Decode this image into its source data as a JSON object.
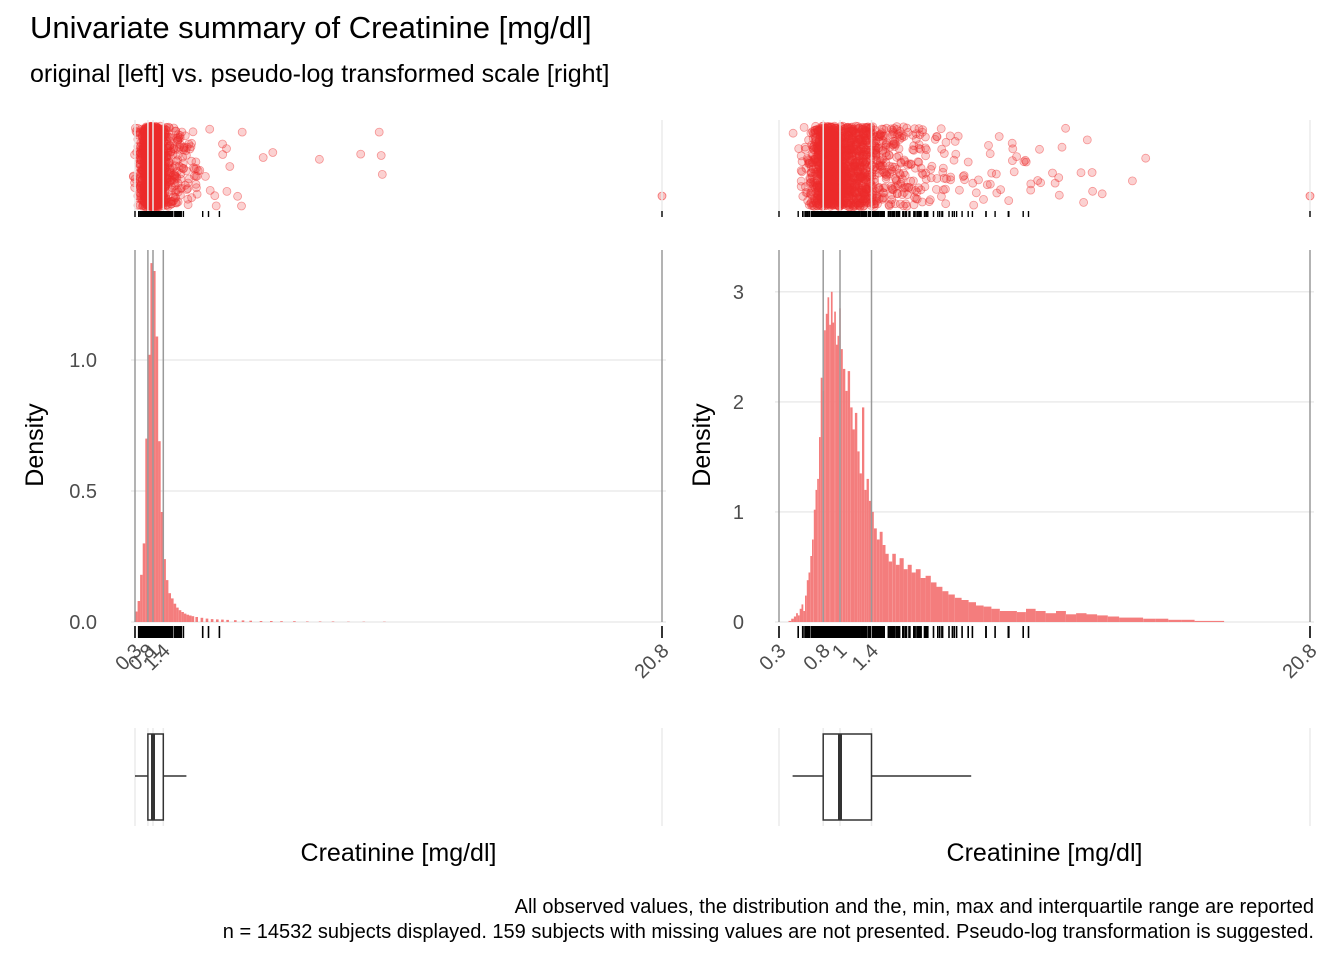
{
  "title": "Univariate summary of Creatinine [mg/dl]",
  "subtitle": "original [left] vs. pseudo-log transformed scale [right]",
  "caption": [
    "All observed values, the distribution and the, min, max and interquartile range are reported",
    "n = 14532 subjects displayed. 159 subjects with missing values are not presented. Pseudo-log transformation is suggested."
  ],
  "colors": {
    "points": "#EE2C2C",
    "bars": "#F47D7D",
    "grid": "#EBEBEB",
    "refline": "#9A9A9A",
    "text": "#4D4D4D"
  },
  "chart_data": [
    {
      "type": "bar",
      "panel": "original",
      "ylabel": "Density",
      "xlabel": "Creatinine [mg/dl]",
      "x_breaks": [
        0.3,
        0.8,
        1.0,
        1.4,
        20.8
      ],
      "x_tick_labels": [
        "0.3",
        "0.8",
        "1",
        "1.4",
        "20.8"
      ],
      "y_ticks": [
        0.0,
        0.5,
        1.0
      ],
      "y_tick_labels": [
        "0.0",
        "0.5",
        "1.0"
      ],
      "xlim": [
        0.3,
        20.8
      ],
      "ylim": [
        0,
        1.42
      ],
      "bin_width": 0.1,
      "bins": [
        {
          "x": 0.35,
          "y": 0.04
        },
        {
          "x": 0.45,
          "y": 0.08
        },
        {
          "x": 0.55,
          "y": 0.18
        },
        {
          "x": 0.65,
          "y": 0.3
        },
        {
          "x": 0.75,
          "y": 0.7
        },
        {
          "x": 0.85,
          "y": 1.02
        },
        {
          "x": 0.95,
          "y": 1.37
        },
        {
          "x": 1.05,
          "y": 1.34
        },
        {
          "x": 1.15,
          "y": 1.09
        },
        {
          "x": 1.25,
          "y": 0.69
        },
        {
          "x": 1.35,
          "y": 0.42
        },
        {
          "x": 1.45,
          "y": 0.24
        },
        {
          "x": 1.55,
          "y": 0.16
        },
        {
          "x": 1.65,
          "y": 0.11
        },
        {
          "x": 1.75,
          "y": 0.09
        },
        {
          "x": 1.85,
          "y": 0.07
        },
        {
          "x": 1.95,
          "y": 0.055
        },
        {
          "x": 2.05,
          "y": 0.045
        },
        {
          "x": 2.15,
          "y": 0.038
        },
        {
          "x": 2.25,
          "y": 0.032
        },
        {
          "x": 2.35,
          "y": 0.028
        },
        {
          "x": 2.45,
          "y": 0.025
        },
        {
          "x": 2.55,
          "y": 0.022
        },
        {
          "x": 2.7,
          "y": 0.019
        },
        {
          "x": 2.9,
          "y": 0.016
        },
        {
          "x": 3.1,
          "y": 0.013
        },
        {
          "x": 3.3,
          "y": 0.011
        },
        {
          "x": 3.5,
          "y": 0.01
        },
        {
          "x": 3.7,
          "y": 0.009
        },
        {
          "x": 3.9,
          "y": 0.008
        },
        {
          "x": 4.2,
          "y": 0.007
        },
        {
          "x": 4.5,
          "y": 0.006
        },
        {
          "x": 4.8,
          "y": 0.005
        },
        {
          "x": 5.2,
          "y": 0.004
        },
        {
          "x": 5.6,
          "y": 0.004
        },
        {
          "x": 6.0,
          "y": 0.003
        },
        {
          "x": 6.5,
          "y": 0.003
        },
        {
          "x": 7.0,
          "y": 0.002
        },
        {
          "x": 7.5,
          "y": 0.002
        },
        {
          "x": 8.0,
          "y": 0.002
        },
        {
          "x": 8.6,
          "y": 0.001
        },
        {
          "x": 9.2,
          "y": 0.001
        },
        {
          "x": 10.0,
          "y": 0.001
        }
      ],
      "boxplot": {
        "min": 0.3,
        "q1": 0.8,
        "median": 1.0,
        "q3": 1.4,
        "whisker_high": 2.3,
        "max": 20.8
      }
    },
    {
      "type": "bar",
      "panel": "pseudo-log",
      "ylabel": "Density",
      "xlabel": "Creatinine [mg/dl]",
      "x_breaks": [
        0.3,
        0.8,
        1.0,
        1.4,
        20.8
      ],
      "x_tick_labels": [
        "0.3",
        "0.8",
        "1",
        "1.4",
        "20.8"
      ],
      "y_ticks": [
        0,
        1,
        2,
        3
      ],
      "y_tick_labels": [
        "0",
        "1",
        "2",
        "3"
      ],
      "xlim": [
        0.3,
        20.8
      ],
      "ylim": [
        0,
        3.38
      ],
      "scale": "pseudo-log",
      "bins": [
        {
          "x": 0.42,
          "y": 0.01
        },
        {
          "x": 0.45,
          "y": 0.03
        },
        {
          "x": 0.48,
          "y": 0.05
        },
        {
          "x": 0.5,
          "y": 0.08
        },
        {
          "x": 0.52,
          "y": 0.06
        },
        {
          "x": 0.54,
          "y": 0.12
        },
        {
          "x": 0.56,
          "y": 0.16
        },
        {
          "x": 0.58,
          "y": 0.1
        },
        {
          "x": 0.6,
          "y": 0.24
        },
        {
          "x": 0.62,
          "y": 0.38
        },
        {
          "x": 0.64,
          "y": 0.45
        },
        {
          "x": 0.66,
          "y": 0.6
        },
        {
          "x": 0.68,
          "y": 0.75
        },
        {
          "x": 0.7,
          "y": 1.02
        },
        {
          "x": 0.72,
          "y": 1.2
        },
        {
          "x": 0.74,
          "y": 1.3
        },
        {
          "x": 0.76,
          "y": 1.68
        },
        {
          "x": 0.78,
          "y": 2.22
        },
        {
          "x": 0.8,
          "y": 2.1
        },
        {
          "x": 0.82,
          "y": 2.65
        },
        {
          "x": 0.84,
          "y": 2.8
        },
        {
          "x": 0.86,
          "y": 2.95
        },
        {
          "x": 0.88,
          "y": 2.7
        },
        {
          "x": 0.9,
          "y": 3.0
        },
        {
          "x": 0.92,
          "y": 2.72
        },
        {
          "x": 0.94,
          "y": 2.82
        },
        {
          "x": 0.96,
          "y": 2.52
        },
        {
          "x": 0.98,
          "y": 2.6
        },
        {
          "x": 1.0,
          "y": 2.85
        },
        {
          "x": 1.02,
          "y": 2.48
        },
        {
          "x": 1.05,
          "y": 2.3
        },
        {
          "x": 1.08,
          "y": 2.1
        },
        {
          "x": 1.11,
          "y": 2.28
        },
        {
          "x": 1.14,
          "y": 1.95
        },
        {
          "x": 1.17,
          "y": 1.75
        },
        {
          "x": 1.2,
          "y": 1.9
        },
        {
          "x": 1.23,
          "y": 1.55
        },
        {
          "x": 1.26,
          "y": 1.35
        },
        {
          "x": 1.29,
          "y": 1.95
        },
        {
          "x": 1.32,
          "y": 1.2
        },
        {
          "x": 1.35,
          "y": 1.3
        },
        {
          "x": 1.38,
          "y": 1.1
        },
        {
          "x": 1.41,
          "y": 1.0
        },
        {
          "x": 1.45,
          "y": 0.85
        },
        {
          "x": 1.49,
          "y": 0.75
        },
        {
          "x": 1.53,
          "y": 0.82
        },
        {
          "x": 1.57,
          "y": 0.7
        },
        {
          "x": 1.61,
          "y": 0.62
        },
        {
          "x": 1.66,
          "y": 0.55
        },
        {
          "x": 1.71,
          "y": 0.62
        },
        {
          "x": 1.76,
          "y": 0.52
        },
        {
          "x": 1.82,
          "y": 0.58
        },
        {
          "x": 1.88,
          "y": 0.48
        },
        {
          "x": 1.94,
          "y": 0.52
        },
        {
          "x": 2.0,
          "y": 0.45
        },
        {
          "x": 2.07,
          "y": 0.48
        },
        {
          "x": 2.15,
          "y": 0.4
        },
        {
          "x": 2.23,
          "y": 0.42
        },
        {
          "x": 2.32,
          "y": 0.36
        },
        {
          "x": 2.42,
          "y": 0.32
        },
        {
          "x": 2.52,
          "y": 0.28
        },
        {
          "x": 2.63,
          "y": 0.25
        },
        {
          "x": 2.75,
          "y": 0.22
        },
        {
          "x": 2.88,
          "y": 0.2
        },
        {
          "x": 3.02,
          "y": 0.18
        },
        {
          "x": 3.17,
          "y": 0.15
        },
        {
          "x": 3.33,
          "y": 0.14
        },
        {
          "x": 3.5,
          "y": 0.12
        },
        {
          "x": 3.7,
          "y": 0.1
        },
        {
          "x": 3.9,
          "y": 0.1
        },
        {
          "x": 4.1,
          "y": 0.09
        },
        {
          "x": 4.35,
          "y": 0.12
        },
        {
          "x": 4.6,
          "y": 0.1
        },
        {
          "x": 4.9,
          "y": 0.08
        },
        {
          "x": 5.2,
          "y": 0.1
        },
        {
          "x": 5.5,
          "y": 0.07
        },
        {
          "x": 5.85,
          "y": 0.08
        },
        {
          "x": 6.2,
          "y": 0.07
        },
        {
          "x": 6.6,
          "y": 0.06
        },
        {
          "x": 7.0,
          "y": 0.05
        },
        {
          "x": 7.5,
          "y": 0.04
        },
        {
          "x": 8.0,
          "y": 0.04
        },
        {
          "x": 8.6,
          "y": 0.03
        },
        {
          "x": 9.2,
          "y": 0.03
        },
        {
          "x": 9.9,
          "y": 0.02
        },
        {
          "x": 10.6,
          "y": 0.02
        },
        {
          "x": 11.5,
          "y": 0.01
        },
        {
          "x": 12.5,
          "y": 0.01
        }
      ],
      "boxplot": {
        "min": 0.3,
        "q1": 0.8,
        "median": 1.0,
        "q3": 1.4,
        "whisker_low": 0.45,
        "whisker_high": 3.0,
        "max": 20.8
      }
    }
  ]
}
